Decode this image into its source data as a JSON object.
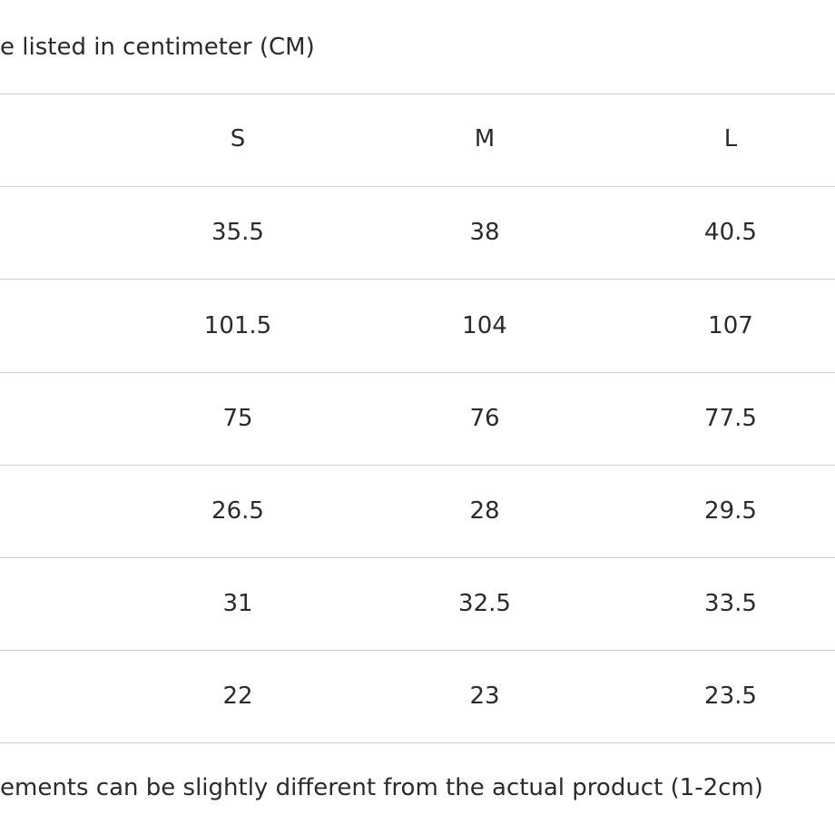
{
  "header": {
    "note": "e listed in centimeter (CM)"
  },
  "table": {
    "columns": [
      "S",
      "M",
      "L"
    ],
    "rows": [
      [
        35.5,
        38,
        40.5
      ],
      [
        101.5,
        104,
        107
      ],
      [
        75,
        76,
        77.5
      ],
      [
        26.5,
        28,
        29.5
      ],
      [
        31,
        32.5,
        33.5
      ],
      [
        22,
        23,
        23.5
      ]
    ]
  },
  "footer": {
    "note": "ements can be slightly different from the actual product (1-2cm)"
  }
}
